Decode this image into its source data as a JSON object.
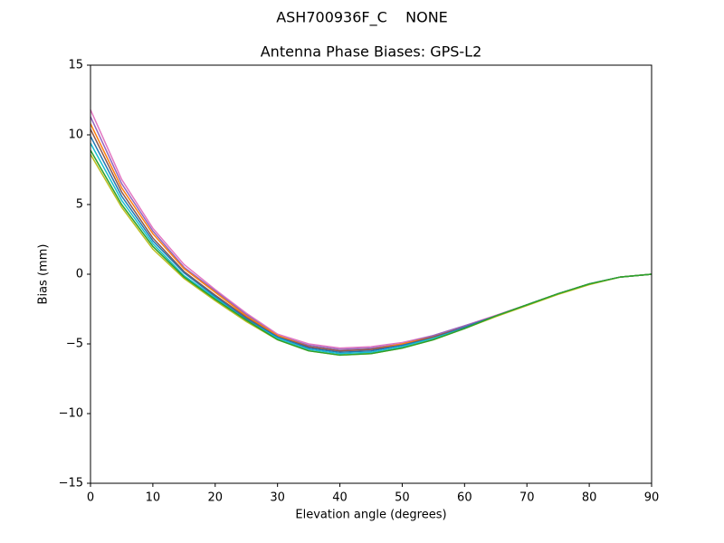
{
  "chart_data": {
    "type": "line",
    "suptitle": "ASH700936F_C    NONE",
    "title": "Antenna Phase Biases: GPS-L2",
    "xlabel": "Elevation angle (degrees)",
    "ylabel": "Bias (mm)",
    "x": [
      0,
      5,
      10,
      15,
      20,
      25,
      30,
      35,
      40,
      45,
      50,
      55,
      60,
      65,
      70,
      75,
      80,
      85,
      90
    ],
    "xlim": [
      0,
      90
    ],
    "xticks": [
      0,
      10,
      20,
      30,
      40,
      50,
      60,
      70,
      80,
      90
    ],
    "ylim": [
      -15,
      15
    ],
    "yticks": [
      {
        "value": -15,
        "label": "−15"
      },
      {
        "value": -10,
        "label": "−10"
      },
      {
        "value": -5,
        "label": "−5"
      },
      0,
      5,
      10,
      15
    ],
    "grid": false,
    "series": [
      {
        "color": "#e377c2",
        "values": [
          11.8,
          6.8,
          3.3,
          0.7,
          -1.1,
          -2.8,
          -4.3,
          -5.0,
          -5.3,
          -5.2,
          -4.9,
          -4.4,
          -3.7,
          -2.95,
          -2.2,
          -1.4,
          -0.7,
          -0.2,
          0
        ]
      },
      {
        "color": "#9467bd",
        "values": [
          11.3,
          6.5,
          3.1,
          0.5,
          -1.2,
          -2.9,
          -4.4,
          -5.1,
          -5.4,
          -5.3,
          -5.0,
          -4.4,
          -3.7,
          -3.0,
          -2.2,
          -1.4,
          -0.7,
          -0.2,
          0
        ]
      },
      {
        "color": "#ff7f0e",
        "values": [
          10.8,
          6.2,
          2.9,
          0.4,
          -1.3,
          -3.0,
          -4.4,
          -5.2,
          -5.5,
          -5.4,
          -5.0,
          -4.5,
          -3.8,
          -3.0,
          -2.2,
          -1.4,
          -0.7,
          -0.2,
          0
        ]
      },
      {
        "color": "#8c564b",
        "values": [
          10.4,
          5.9,
          2.6,
          0.2,
          -1.5,
          -3.1,
          -4.5,
          -5.2,
          -5.5,
          -5.4,
          -5.1,
          -4.5,
          -3.8,
          -3.0,
          -2.2,
          -1.4,
          -0.7,
          -0.2,
          0
        ]
      },
      {
        "color": "#1f77b4",
        "values": [
          9.9,
          5.6,
          2.4,
          0.1,
          -1.6,
          -3.2,
          -4.5,
          -5.3,
          -5.6,
          -5.5,
          -5.1,
          -4.6,
          -3.8,
          -3.0,
          -2.2,
          -1.4,
          -0.7,
          -0.2,
          0
        ]
      },
      {
        "color": "#17becf",
        "values": [
          9.4,
          5.3,
          2.2,
          -0.1,
          -1.7,
          -3.3,
          -4.6,
          -5.4,
          -5.7,
          -5.6,
          -5.2,
          -4.6,
          -3.9,
          -3.0,
          -2.2,
          -1.4,
          -0.7,
          -0.2,
          0
        ]
      },
      {
        "color": "#bcbd22",
        "values": [
          8.6,
          4.8,
          1.8,
          -0.3,
          -1.9,
          -3.4,
          -4.7,
          -5.5,
          -5.8,
          -5.7,
          -5.3,
          -4.7,
          -3.9,
          -3.05,
          -2.25,
          -1.45,
          -0.75,
          -0.2,
          0
        ]
      },
      {
        "color": "#2ca02c",
        "values": [
          8.9,
          5.0,
          2.0,
          -0.2,
          -1.8,
          -3.3,
          -4.7,
          -5.5,
          -5.8,
          -5.7,
          -5.3,
          -4.7,
          -3.9,
          -3.0,
          -2.2,
          -1.4,
          -0.7,
          -0.2,
          0
        ]
      }
    ]
  }
}
